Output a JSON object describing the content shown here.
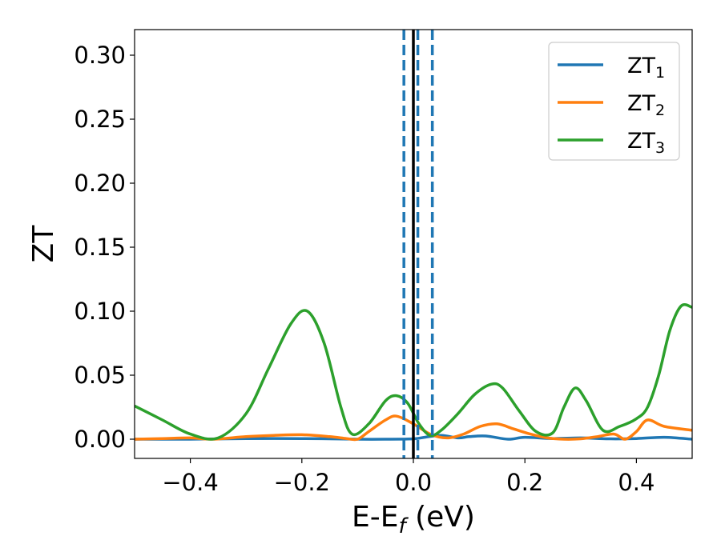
{
  "chart_data": {
    "type": "line",
    "xlabel": "E-E",
    "xlabel_subscript": "f",
    "xlabel_unit": " (eV)",
    "ylabel": "ZT",
    "xlim": [
      -0.5,
      0.5
    ],
    "ylim": [
      -0.015,
      0.32
    ],
    "xticks": [
      -0.4,
      -0.2,
      0.0,
      0.2,
      0.4
    ],
    "xtick_labels": [
      "−0.4",
      "−0.2",
      "0.0",
      "0.2",
      "0.4"
    ],
    "yticks": [
      0.0,
      0.05,
      0.1,
      0.15,
      0.2,
      0.25,
      0.3
    ],
    "ytick_labels": [
      "0.00",
      "0.05",
      "0.10",
      "0.15",
      "0.20",
      "0.25",
      "0.30"
    ],
    "grid": false,
    "legend_position": "top-right",
    "vlines": [
      {
        "x": 0.0,
        "style": "solid",
        "color": "#000000"
      },
      {
        "x": -0.017,
        "style": "dashed",
        "color": "#1f77b4"
      },
      {
        "x": 0.008,
        "style": "dashed",
        "color": "#1f77b4"
      },
      {
        "x": 0.034,
        "style": "dashed",
        "color": "#1f77b4"
      }
    ],
    "series": [
      {
        "name": "ZT",
        "subscript": "1",
        "color": "#1f77b4",
        "x": [
          -0.5,
          -0.4,
          -0.3,
          -0.2,
          -0.1,
          -0.05,
          0.0,
          0.02,
          0.05,
          0.08,
          0.1,
          0.13,
          0.17,
          0.2,
          0.25,
          0.3,
          0.35,
          0.4,
          0.45,
          0.5
        ],
        "y": [
          0.0,
          0.0,
          0.0005,
          0.0005,
          0.0,
          0.0,
          0.0003,
          0.0015,
          0.003,
          0.001,
          0.002,
          0.0025,
          0.0,
          0.0015,
          0.0005,
          0.001,
          0.0003,
          0.0005,
          0.0015,
          0.0
        ]
      },
      {
        "name": "ZT",
        "subscript": "2",
        "color": "#ff7f0e",
        "x": [
          -0.5,
          -0.45,
          -0.4,
          -0.36,
          -0.3,
          -0.25,
          -0.2,
          -0.15,
          -0.12,
          -0.1,
          -0.08,
          -0.05,
          -0.03,
          0.0,
          0.03,
          0.06,
          0.09,
          0.12,
          0.15,
          0.18,
          0.21,
          0.24,
          0.27,
          0.3,
          0.33,
          0.36,
          0.38,
          0.4,
          0.42,
          0.45,
          0.5
        ],
        "y": [
          0.0,
          0.0005,
          0.001,
          0.0,
          0.002,
          0.003,
          0.0035,
          0.002,
          0.0005,
          0.0,
          0.006,
          0.015,
          0.018,
          0.012,
          0.004,
          0.001,
          0.004,
          0.01,
          0.012,
          0.008,
          0.004,
          0.001,
          0.0,
          0.0003,
          0.002,
          0.004,
          0.0,
          0.006,
          0.015,
          0.01,
          0.007
        ]
      },
      {
        "name": "ZT",
        "subscript": "3",
        "color": "#2ca02c",
        "x": [
          -0.5,
          -0.45,
          -0.4,
          -0.35,
          -0.3,
          -0.26,
          -0.22,
          -0.19,
          -0.16,
          -0.13,
          -0.11,
          -0.08,
          -0.05,
          -0.03,
          -0.01,
          0.01,
          0.03,
          0.05,
          0.08,
          0.11,
          0.14,
          0.16,
          0.19,
          0.22,
          0.25,
          0.27,
          0.29,
          0.31,
          0.34,
          0.37,
          0.4,
          0.42,
          0.44,
          0.46,
          0.48,
          0.5
        ],
        "y": [
          0.026,
          0.015,
          0.004,
          0.001,
          0.02,
          0.055,
          0.09,
          0.1,
          0.075,
          0.025,
          0.004,
          0.012,
          0.03,
          0.034,
          0.028,
          0.012,
          0.003,
          0.007,
          0.02,
          0.035,
          0.043,
          0.04,
          0.022,
          0.006,
          0.005,
          0.025,
          0.04,
          0.03,
          0.007,
          0.01,
          0.016,
          0.025,
          0.05,
          0.085,
          0.104,
          0.103
        ]
      }
    ]
  }
}
